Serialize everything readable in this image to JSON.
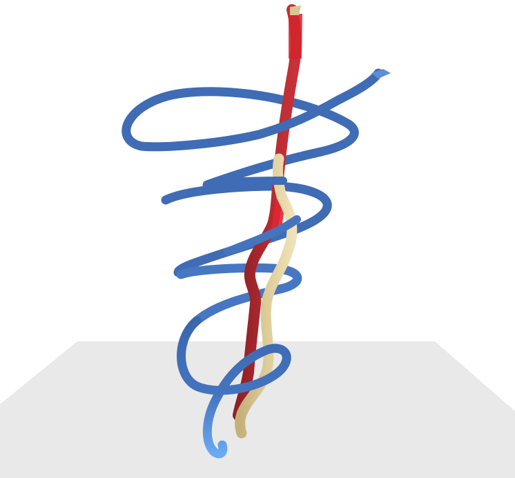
{
  "scene": {
    "background_color": "#ffffff",
    "ground_plane_color": "#e9e9e9",
    "objects": [
      {
        "name": "blue-helix-tube",
        "color": "#3f6cb4",
        "highlight_color": "#6aaaf0",
        "description_shape": "helix spiral tube"
      },
      {
        "name": "red-tube",
        "color": "#a92a2e",
        "highlight_color": "#e01e2b",
        "description_shape": "vertical wavy tube"
      },
      {
        "name": "tan-tube",
        "color": "#d2c08c",
        "highlight_color": "#e8d9a8",
        "description_shape": "vertical wavy tube"
      }
    ]
  }
}
